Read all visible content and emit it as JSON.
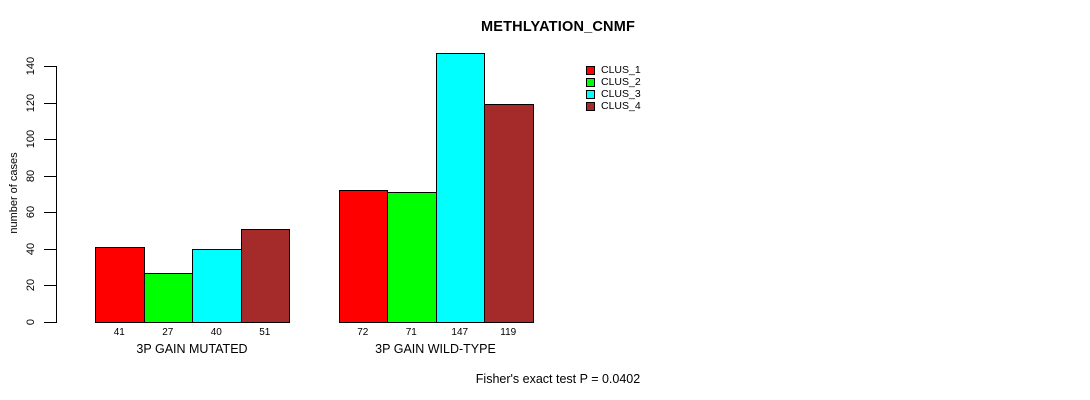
{
  "chart_data": {
    "type": "bar",
    "title": "METHLYATION_CNMF",
    "ylabel": "number of cases",
    "xlabel": "",
    "categories": [
      "3P GAIN MUTATED",
      "3P GAIN WILD-TYPE"
    ],
    "series": [
      {
        "name": "CLUS_1",
        "color": "#ff0000",
        "values": [
          41,
          72
        ]
      },
      {
        "name": "CLUS_2",
        "color": "#00ff00",
        "values": [
          27,
          71
        ]
      },
      {
        "name": "CLUS_3",
        "color": "#00ffff",
        "values": [
          40,
          147
        ]
      },
      {
        "name": "CLUS_4",
        "color": "#a52a2a",
        "values": [
          51,
          119
        ]
      }
    ],
    "bar_value_labels": [
      [
        41,
        27,
        40,
        51
      ],
      [
        72,
        71,
        147,
        119
      ]
    ],
    "yticks": [
      0,
      20,
      40,
      60,
      80,
      100,
      120,
      140
    ],
    "ylim": [
      0,
      147
    ],
    "grid": false,
    "legend_position": "top-right",
    "legend_entries": [
      "CLUS_1",
      "CLUS_2",
      "CLUS_3",
      "CLUS_4"
    ],
    "annotation": "Fisher's exact test P = 0.0402",
    "axis_color": "#000000",
    "background_color": "#ffffff"
  }
}
